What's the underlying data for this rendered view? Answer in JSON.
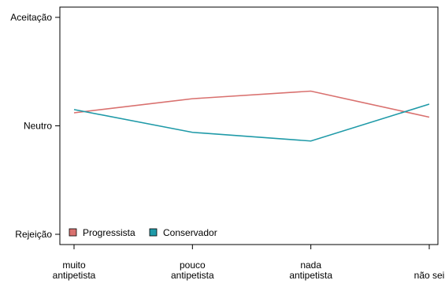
{
  "chart_data": {
    "type": "line",
    "categories": [
      "muito\nantipetista",
      "pouco\nantipetista",
      "nada\nantipetista",
      "não sei"
    ],
    "y_ticks": [
      {
        "label": "Rejeição",
        "value": -1
      },
      {
        "label": "Neutro",
        "value": 0
      },
      {
        "label": "Aceitação",
        "value": 1
      }
    ],
    "ylim": [
      -1,
      1
    ],
    "series": [
      {
        "name": "Progressista",
        "color": "#d9716f",
        "values": [
          0.12,
          0.25,
          0.32,
          0.08
        ]
      },
      {
        "name": "Conservador",
        "color": "#1f9aa8",
        "values": [
          0.15,
          -0.06,
          -0.14,
          0.2
        ]
      }
    ],
    "legend_position": "bottom-left",
    "grid": false
  }
}
